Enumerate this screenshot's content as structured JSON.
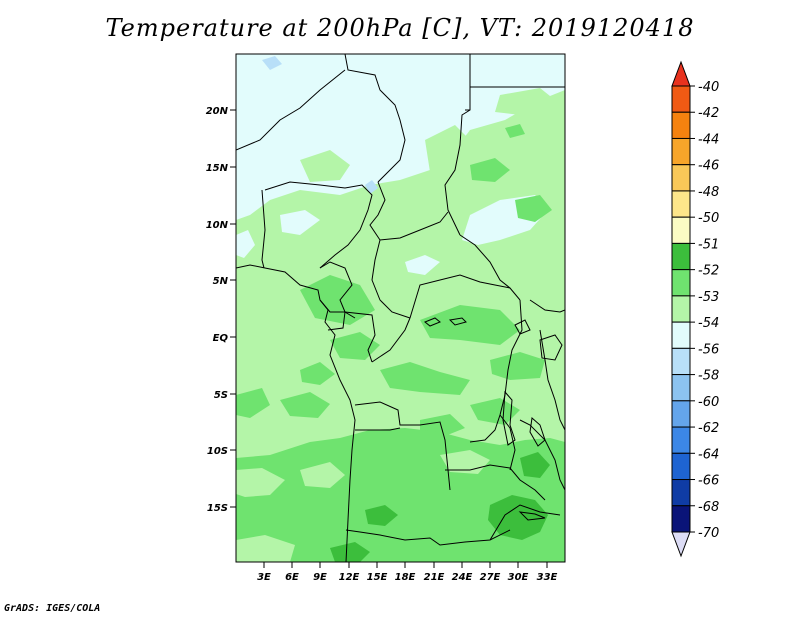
{
  "title": "Temperature at 200hPa [C], VT: 2019120418",
  "credit": "GrADS: IGES/COLA",
  "map": {
    "lat_labels": [
      "20N",
      "15N",
      "10N",
      "5N",
      "EQ",
      "5S",
      "10S",
      "15S"
    ],
    "lon_labels": [
      "3E",
      "6E",
      "9E",
      "12E",
      "15E",
      "18E",
      "21E",
      "24E",
      "27E",
      "30E",
      "33E"
    ]
  },
  "colorbar": {
    "labels": [
      "-40",
      "-42",
      "-44",
      "-46",
      "-48",
      "-50",
      "-51",
      "-52",
      "-53",
      "-54",
      "-56",
      "-58",
      "-60",
      "-62",
      "-64",
      "-66",
      "-68",
      "-70"
    ],
    "colors": [
      "#e8321e",
      "#f05a14",
      "#f5820f",
      "#f7a52a",
      "#f9c858",
      "#fde68a",
      "#fbfcc4",
      "#3cbe3c",
      "#6fe36f",
      "#b4f5a8",
      "#e2fcfc",
      "#b8dff8",
      "#8cc3f0",
      "#64a5eb",
      "#3c87e6",
      "#1e64d2",
      "#0f3ca5",
      "#0a1478",
      "#dcdcf5"
    ]
  }
}
